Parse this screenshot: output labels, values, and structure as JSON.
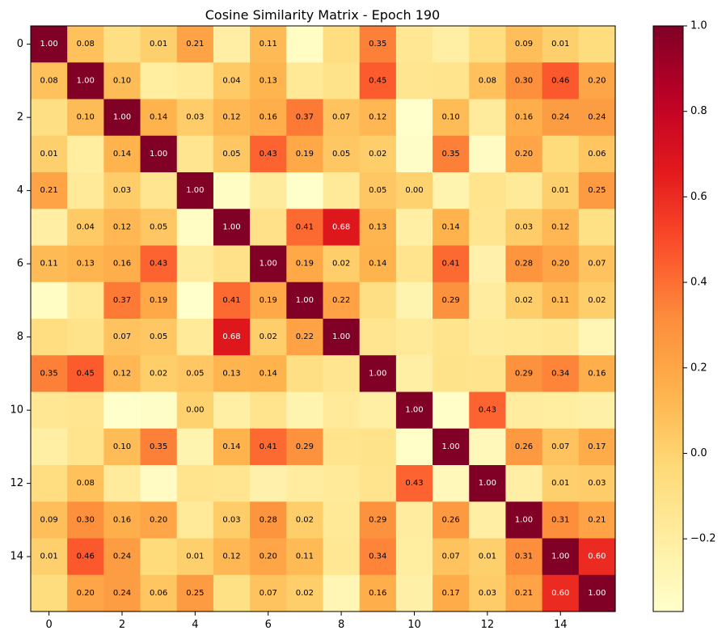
{
  "chart_data": {
    "type": "heatmap",
    "title": "Cosine Similarity Matrix - Epoch 190",
    "xlabel": "",
    "ylabel": "",
    "x_ticks": [
      "0",
      "2",
      "4",
      "6",
      "8",
      "10",
      "12",
      "14"
    ],
    "y_ticks": [
      "0",
      "2",
      "4",
      "6",
      "8",
      "10",
      "12",
      "14"
    ],
    "colormap": "YlOrRd",
    "vmin": -0.37,
    "vmax": 1.0,
    "colorbar_ticks": [
      "1.0",
      "0.8",
      "0.6",
      "0.4",
      "0.2",
      "0.0",
      "−0.2"
    ],
    "colorbar_tick_values": [
      1.0,
      0.8,
      0.6,
      0.4,
      0.2,
      0.0,
      -0.2
    ],
    "label_threshold": 0.0,
    "values": [
      [
        1.0,
        0.08,
        -0.08,
        0.01,
        0.21,
        -0.21,
        0.11,
        -0.34,
        -0.07,
        0.35,
        -0.15,
        -0.22,
        -0.07,
        0.09,
        0.01,
        -0.06
      ],
      [
        0.08,
        1.0,
        0.1,
        -0.2,
        -0.17,
        0.04,
        0.13,
        -0.16,
        -0.11,
        0.45,
        -0.13,
        -0.12,
        0.08,
        0.3,
        0.46,
        0.2
      ],
      [
        -0.08,
        0.1,
        1.0,
        0.14,
        0.03,
        0.12,
        0.16,
        0.37,
        0.07,
        0.12,
        -0.37,
        0.1,
        -0.18,
        0.16,
        0.24,
        0.24
      ],
      [
        0.01,
        -0.2,
        0.14,
        1.0,
        -0.13,
        0.05,
        0.43,
        0.19,
        0.05,
        0.02,
        -0.35,
        0.35,
        -0.33,
        0.2,
        -0.05,
        0.06
      ],
      [
        0.21,
        -0.17,
        0.03,
        -0.13,
        1.0,
        -0.34,
        -0.18,
        -0.37,
        -0.17,
        0.05,
        0.0,
        -0.26,
        -0.12,
        -0.17,
        0.01,
        0.25
      ],
      [
        -0.21,
        0.04,
        0.12,
        0.05,
        -0.34,
        1.0,
        -0.1,
        0.41,
        0.68,
        0.13,
        -0.22,
        0.14,
        -0.13,
        0.03,
        0.12,
        -0.09
      ],
      [
        0.11,
        0.13,
        0.16,
        0.43,
        -0.18,
        -0.1,
        1.0,
        0.19,
        0.02,
        0.14,
        -0.12,
        0.41,
        -0.24,
        0.28,
        0.2,
        0.07
      ],
      [
        -0.34,
        -0.16,
        0.37,
        0.19,
        -0.37,
        0.41,
        0.19,
        1.0,
        0.22,
        -0.08,
        -0.26,
        0.29,
        -0.19,
        0.02,
        0.11,
        0.02
      ],
      [
        -0.07,
        -0.11,
        0.07,
        0.05,
        -0.17,
        0.68,
        0.02,
        0.22,
        1.0,
        -0.13,
        -0.17,
        -0.12,
        -0.17,
        -0.16,
        -0.15,
        -0.28
      ],
      [
        0.35,
        0.45,
        0.12,
        0.02,
        0.05,
        0.13,
        0.14,
        -0.08,
        -0.13,
        1.0,
        -0.22,
        -0.11,
        -0.12,
        0.29,
        0.34,
        0.16
      ],
      [
        -0.15,
        -0.13,
        -0.37,
        -0.35,
        0.0,
        -0.22,
        -0.12,
        -0.26,
        -0.17,
        -0.22,
        1.0,
        -0.36,
        0.43,
        -0.19,
        -0.2,
        -0.23
      ],
      [
        -0.22,
        -0.12,
        0.1,
        0.35,
        -0.26,
        0.14,
        0.41,
        0.29,
        -0.12,
        -0.11,
        -0.36,
        1.0,
        -0.3,
        0.26,
        0.07,
        0.17
      ],
      [
        -0.07,
        0.08,
        -0.18,
        -0.33,
        -0.12,
        -0.13,
        -0.24,
        -0.19,
        -0.17,
        -0.12,
        0.43,
        -0.3,
        1.0,
        -0.21,
        0.01,
        0.03
      ],
      [
        0.09,
        0.3,
        0.16,
        0.2,
        -0.17,
        0.03,
        0.28,
        0.02,
        -0.16,
        0.29,
        -0.19,
        0.26,
        -0.21,
        1.0,
        0.31,
        0.21
      ],
      [
        0.01,
        0.46,
        0.24,
        -0.05,
        0.01,
        0.12,
        0.2,
        0.11,
        -0.15,
        0.34,
        -0.2,
        0.07,
        0.01,
        0.31,
        1.0,
        0.6
      ],
      [
        -0.06,
        0.2,
        0.24,
        0.06,
        0.25,
        -0.09,
        0.07,
        0.02,
        -0.28,
        0.16,
        -0.23,
        0.17,
        0.03,
        0.21,
        0.6,
        1.0
      ]
    ]
  }
}
